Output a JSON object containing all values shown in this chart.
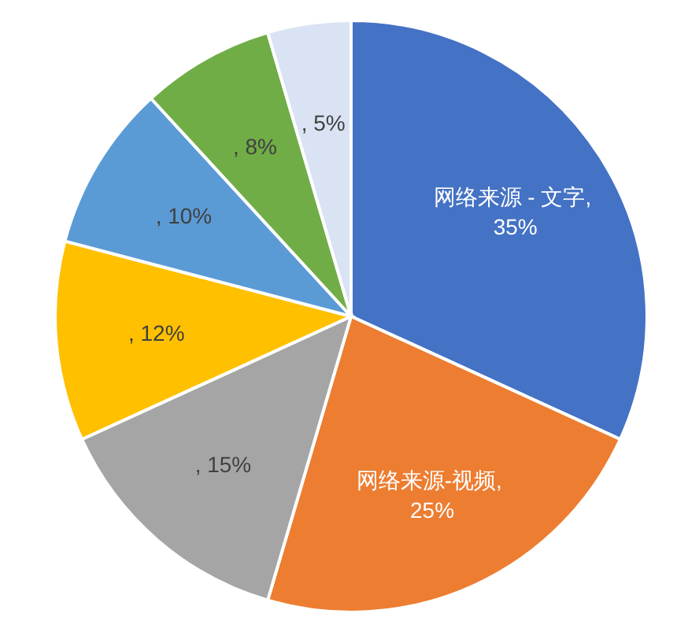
{
  "chart_data": {
    "type": "pie",
    "categories": [
      "网络来源 - 文字",
      "网络来源-视频",
      null,
      null,
      null,
      null,
      null
    ],
    "values": [
      35,
      25,
      15,
      12,
      10,
      8,
      5
    ],
    "value_labels": [
      ", 35%",
      ", 25%",
      ", 15%",
      ", 12%",
      ", 10%",
      ", 8%",
      ", 5%"
    ],
    "colors": [
      "#4472c4",
      "#ed7d31",
      "#a5a5a5",
      "#ffc000",
      "#5b9bd5",
      "#70ad47",
      "#dae3f3"
    ]
  }
}
